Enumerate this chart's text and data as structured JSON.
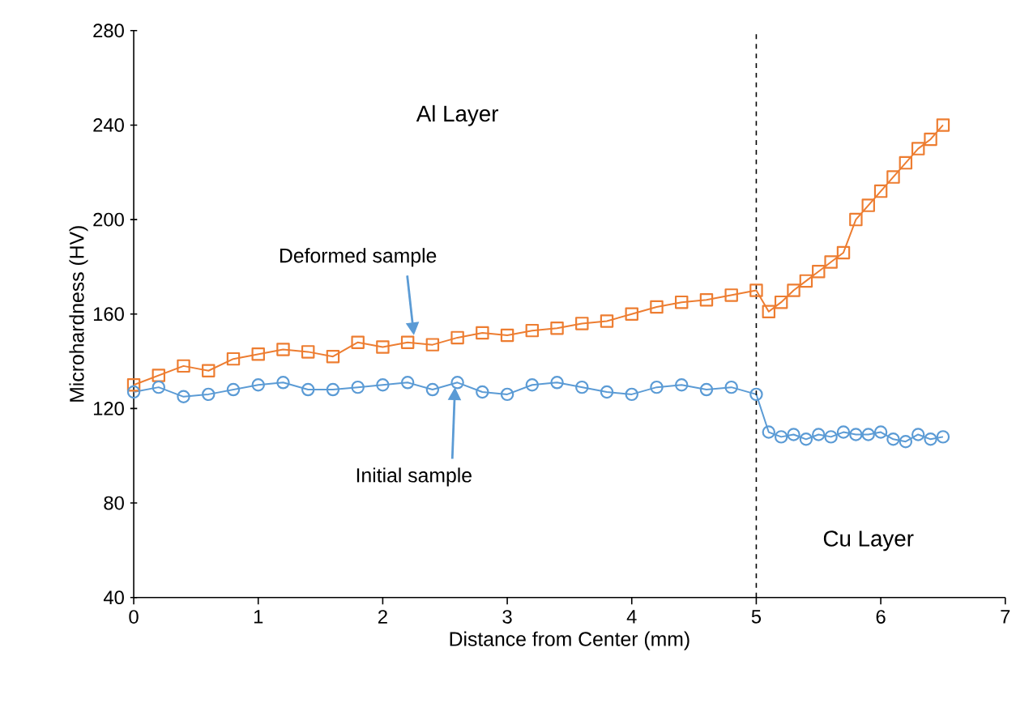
{
  "chart_data": {
    "type": "line",
    "xlabel": "Distance from Center (mm)",
    "ylabel": "Microhardness (HV)",
    "xlim": [
      0,
      7
    ],
    "xticks": [
      0,
      1,
      2,
      3,
      4,
      5,
      6,
      7
    ],
    "ylim": [
      40,
      280
    ],
    "yticks": [
      40,
      80,
      120,
      160,
      200,
      240,
      280
    ],
    "grid": false,
    "series": [
      {
        "color": "#ed7d31",
        "marker": "square",
        "x": [
          0,
          0.2,
          0.4,
          0.6,
          0.8,
          1.0,
          1.2,
          1.4,
          1.6,
          1.8,
          2.0,
          2.2,
          2.4,
          2.6,
          2.8,
          3.0,
          3.2,
          3.4,
          3.6,
          3.8,
          4.0,
          4.2,
          4.4,
          4.6,
          4.8,
          5.0,
          5.1,
          5.2,
          5.3,
          5.4,
          5.5,
          5.6,
          5.7,
          5.8,
          5.9,
          6.0,
          6.1,
          6.2,
          6.3,
          6.4,
          6.5
        ],
        "values": [
          130,
          134,
          138,
          136,
          141,
          143,
          145,
          144,
          142,
          148,
          146,
          148,
          147,
          150,
          152,
          151,
          153,
          154,
          156,
          157,
          160,
          163,
          165,
          166,
          168,
          170,
          161,
          165,
          170,
          174,
          178,
          182,
          186,
          200,
          206,
          212,
          218,
          224,
          230,
          234,
          240
        ]
      },
      {
        "color": "#5b9bd5",
        "marker": "circle",
        "x": [
          0,
          0.2,
          0.4,
          0.6,
          0.8,
          1.0,
          1.2,
          1.4,
          1.6,
          1.8,
          2.0,
          2.2,
          2.4,
          2.6,
          2.8,
          3.0,
          3.2,
          3.4,
          3.6,
          3.8,
          4.0,
          4.2,
          4.4,
          4.6,
          4.8,
          5.0,
          5.1,
          5.2,
          5.3,
          5.4,
          5.5,
          5.6,
          5.7,
          5.8,
          5.9,
          6.0,
          6.1,
          6.2,
          6.3,
          6.4,
          6.5
        ],
        "values": [
          127,
          129,
          125,
          126,
          128,
          130,
          131,
          128,
          128,
          129,
          130,
          131,
          128,
          131,
          127,
          126,
          130,
          131,
          129,
          127,
          126,
          129,
          130,
          128,
          129,
          126,
          110,
          108,
          109,
          107,
          109,
          108,
          110,
          109,
          109,
          110,
          107,
          106,
          109,
          107,
          108
        ]
      }
    ],
    "ref_lines": [
      {
        "axis": "x",
        "value": 5,
        "line_style": "dashed",
        "color": "#000000"
      }
    ],
    "annotations": [
      {
        "text": "Deformed sample",
        "x": 2.25,
        "y": 151
      },
      {
        "text": "Initial sample",
        "x": 2.58,
        "y": 129
      },
      "Al Layer",
      "Cu Layer"
    ]
  }
}
